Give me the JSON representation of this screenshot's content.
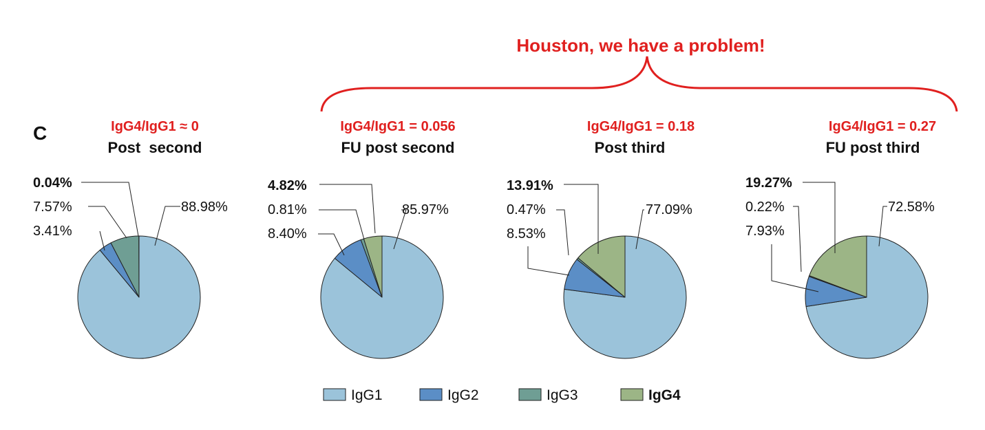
{
  "panel_letter": "C",
  "headline": "Houston, we have a problem!",
  "colors": {
    "IgG1": "#9bc3da",
    "IgG2": "#5b8ec6",
    "IgG3": "#6f9e94",
    "IgG4": "#9cb586",
    "accent": "#e0201f"
  },
  "chart_data": [
    {
      "type": "pie",
      "title": "Post  second",
      "ratio_label": "IgG4/IgG1 ≈ 0",
      "slices": [
        {
          "name": "IgG1",
          "value": 88.98,
          "label": "88.98%"
        },
        {
          "name": "IgG2",
          "value": 3.41,
          "label": "3.41%"
        },
        {
          "name": "IgG3",
          "value": 7.57,
          "label": "7.57%"
        },
        {
          "name": "IgG4",
          "value": 0.04,
          "label": "0.04%"
        }
      ]
    },
    {
      "type": "pie",
      "title": "FU post second",
      "ratio_label": "IgG4/IgG1 = 0.056",
      "slices": [
        {
          "name": "IgG1",
          "value": 85.97,
          "label": "85.97%"
        },
        {
          "name": "IgG2",
          "value": 8.4,
          "label": "8.40%"
        },
        {
          "name": "IgG3",
          "value": 0.81,
          "label": "0.81%"
        },
        {
          "name": "IgG4",
          "value": 4.82,
          "label": "4.82%"
        }
      ]
    },
    {
      "type": "pie",
      "title": "Post third",
      "ratio_label": "IgG4/IgG1 = 0.18",
      "slices": [
        {
          "name": "IgG1",
          "value": 77.09,
          "label": "77.09%"
        },
        {
          "name": "IgG2",
          "value": 8.53,
          "label": "8.53%"
        },
        {
          "name": "IgG3",
          "value": 0.47,
          "label": "0.47%"
        },
        {
          "name": "IgG4",
          "value": 13.91,
          "label": "13.91%"
        }
      ]
    },
    {
      "type": "pie",
      "title": "FU post third",
      "ratio_label": "IgG4/IgG1 = 0.27",
      "slices": [
        {
          "name": "IgG1",
          "value": 72.58,
          "label": "72.58%"
        },
        {
          "name": "IgG2",
          "value": 7.93,
          "label": "7.93%"
        },
        {
          "name": "IgG3",
          "value": 0.22,
          "label": "0.22%"
        },
        {
          "name": "IgG4",
          "value": 19.27,
          "label": "19.27%"
        }
      ]
    }
  ],
  "legend": [
    {
      "name": "IgG1",
      "label": "IgG1",
      "bold": false
    },
    {
      "name": "IgG2",
      "label": "IgG2",
      "bold": false
    },
    {
      "name": "IgG3",
      "label": "IgG3",
      "bold": false
    },
    {
      "name": "IgG4",
      "label": "IgG4",
      "bold": true
    }
  ]
}
